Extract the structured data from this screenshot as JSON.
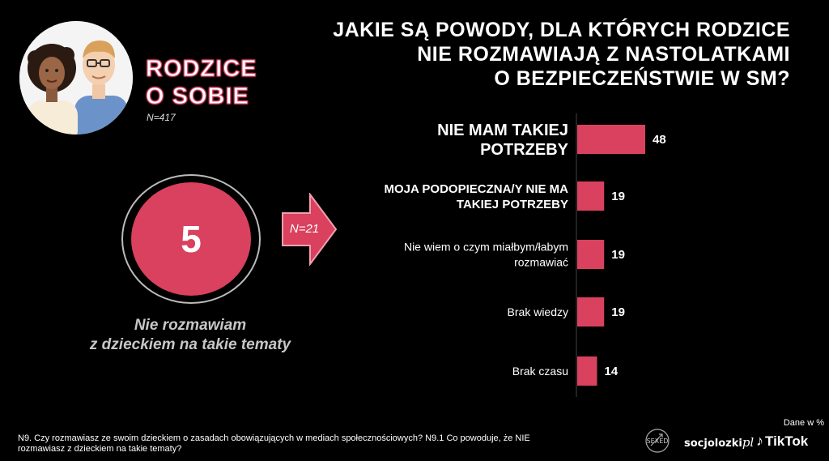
{
  "brand": {
    "line1": "RODZICE",
    "line2": "O SOBIE",
    "n": "N=417"
  },
  "title": {
    "line1": "JAKIE SĄ POWODY, DLA KTÓRYCH RODZICE",
    "line2": "NIE ROZMAWIAJĄ Z NASTOLATKAMI",
    "line3": "O BEZPIECZEŃSTWIE W SM?"
  },
  "highlight": {
    "value": "5",
    "caption_line1": "Nie rozmawiam",
    "caption_line2": "z dzieckiem na takie tematy",
    "arrow_label": "N=21"
  },
  "chart_data": {
    "type": "bar",
    "orientation": "horizontal",
    "categories": [
      [
        "NIE MAM TAKIEJ",
        "POTRZEBY"
      ],
      [
        "MOJA PODOPIECZNA/Y NIE MA",
        "TAKIEJ POTRZEBY"
      ],
      [
        "Nie wiem o czym miałbym/łabym",
        "rozmawiać"
      ],
      [
        "Brak wiedzy"
      ],
      [
        "Brak czasu"
      ]
    ],
    "category_bold": [
      true,
      true,
      false,
      false,
      false
    ],
    "values": [
      48,
      19,
      19,
      19,
      14
    ],
    "bar_color": "#d9415f",
    "xlim": [
      0,
      48
    ]
  },
  "footnote": {
    "line1": "N9. Czy rozmawiasz ze swoim dzieckiem o zasadach obowiązujących w mediach społecznościowych? N9.1 Co powoduje, że NIE",
    "line2": "rozmawiasz z dzieckiem na takie tematy?"
  },
  "data_note": "Dane w %",
  "logos": {
    "sexed": "SEXED",
    "socjolozki": "socjolozki",
    "socjolozki_suffix": "pl",
    "tiktok": "TikTok",
    "tiktok_icon": "music-note-icon"
  },
  "colors": {
    "accent": "#d9415f",
    "background": "#000000"
  }
}
